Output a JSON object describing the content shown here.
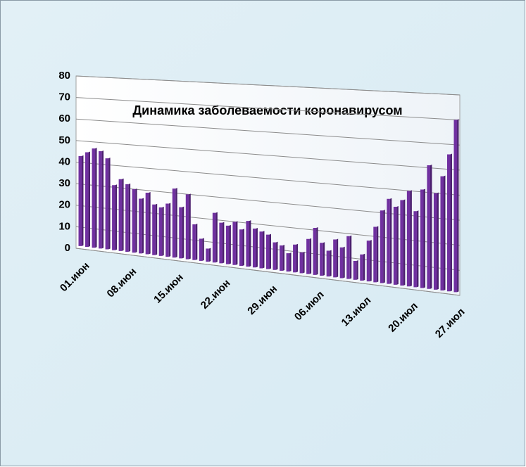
{
  "chart_data": {
    "type": "bar",
    "title": "Динамика заболеваемости коронавирусом",
    "categories": [
      "01.июн",
      null,
      null,
      null,
      null,
      null,
      null,
      "08.июн",
      null,
      null,
      null,
      null,
      null,
      null,
      "15.июн",
      null,
      null,
      null,
      null,
      null,
      null,
      "22.июн",
      null,
      null,
      null,
      null,
      null,
      null,
      "29.июн",
      null,
      null,
      null,
      null,
      null,
      null,
      "06.июл",
      null,
      null,
      null,
      null,
      null,
      null,
      "13.июл",
      null,
      null,
      null,
      null,
      null,
      null,
      "20.июл",
      null,
      null,
      null,
      null,
      null,
      null,
      "27.июл"
    ],
    "values": [
      43,
      45,
      47,
      46,
      43,
      31,
      34,
      32,
      30,
      26,
      29,
      24,
      23,
      25,
      32,
      24,
      30,
      17,
      11,
      7,
      23,
      19,
      18,
      20,
      17,
      21,
      18,
      17,
      16,
      13,
      12,
      9,
      13,
      10,
      16,
      21,
      15,
      12,
      17,
      14,
      19,
      9,
      12,
      18,
      24,
      31,
      36,
      33,
      36,
      40,
      32,
      41,
      51,
      40,
      47,
      56,
      70
    ],
    "color": "#7030a0",
    "ylim": [
      0,
      80
    ],
    "yticks": [
      0,
      10,
      20,
      30,
      40,
      50,
      60,
      70,
      80
    ],
    "grid": true
  }
}
